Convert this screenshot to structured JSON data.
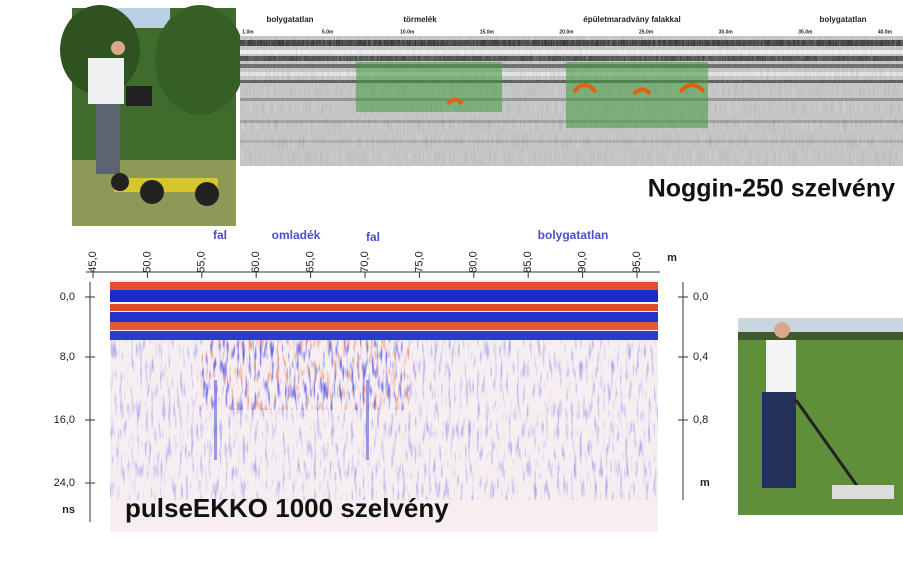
{
  "noggin": {
    "labels": [
      "bolygatatlan",
      "törmelék",
      "épületmaradvány falakkal",
      "bolygatatlan"
    ],
    "scale": [
      "1.0m",
      "5.0m",
      "10.0m",
      "15.0m",
      "20.0m",
      "25.0m",
      "30.0m",
      "35.0m",
      "40.0m"
    ],
    "title": "Noggin-250 szelvény"
  },
  "pulseekko": {
    "distance_ticks": [
      "45,0",
      "50,0",
      "55,0",
      "60,0",
      "65,0",
      "70,0",
      "75,0",
      "80,0",
      "85,0",
      "90,0",
      "95,0"
    ],
    "distance_unit": "m",
    "labels": [
      "fal",
      "omladék",
      "fal",
      "bolygatatlan"
    ],
    "time_ticks": [
      "0,0",
      "8,0",
      "16,0",
      "24,0"
    ],
    "time_unit": "ns",
    "depth_ticks": [
      "0,0",
      "0,4",
      "0,8"
    ],
    "depth_unit": "m",
    "title": "pulseEKKO 1000 szelvény"
  }
}
